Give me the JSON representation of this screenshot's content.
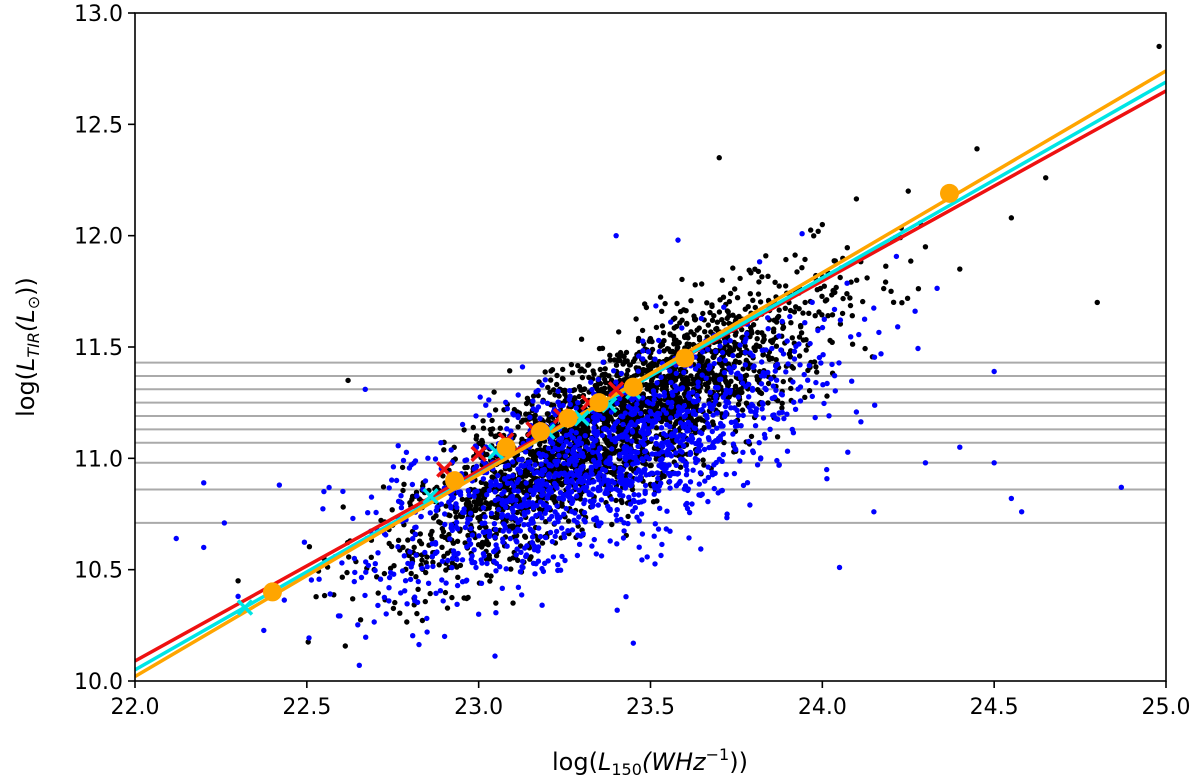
{
  "chart_data": {
    "type": "scatter",
    "title": "",
    "xlabel": {
      "pre": "log(",
      "main": "L",
      "sub": "150",
      "post": "(WHz",
      "sup": "−1",
      "end": "))"
    },
    "ylabel": {
      "pre": "log(",
      "main": "L",
      "sub": "TIR",
      "post": "(L",
      "sub2": "⊙",
      "end": "))"
    },
    "xlim": [
      22.0,
      25.0
    ],
    "ylim": [
      10.0,
      13.0
    ],
    "x_ticks": [
      "22.0",
      "22.5",
      "23.0",
      "23.5",
      "24.0",
      "24.5",
      "25.0"
    ],
    "y_ticks": [
      "10.0",
      "10.5",
      "11.0",
      "11.5",
      "12.0",
      "12.5",
      "13.0"
    ],
    "grid": false,
    "hlines": {
      "color": "#aaaaaa",
      "values": [
        10.71,
        10.86,
        10.98,
        11.07,
        11.13,
        11.19,
        11.25,
        11.31,
        11.37,
        11.43
      ]
    },
    "series": [
      {
        "kind": "scatter",
        "color": "#000000",
        "points": [
          [
            22.62,
            11.35
          ],
          [
            23.7,
            12.35
          ],
          [
            24.45,
            12.39
          ],
          [
            24.98,
            12.85
          ],
          [
            24.65,
            12.26
          ],
          [
            24.4,
            11.85
          ],
          [
            24.55,
            12.08
          ],
          [
            24.3,
            11.95
          ],
          [
            24.8,
            11.7
          ],
          [
            24.25,
            12.2
          ],
          [
            22.3,
            10.45
          ],
          [
            22.55,
            10.55
          ],
          [
            22.75,
            10.7
          ],
          [
            22.9,
            10.95
          ],
          [
            23.05,
            11.1
          ],
          [
            23.2,
            11.2
          ],
          [
            23.35,
            11.3
          ],
          [
            23.5,
            11.4
          ],
          [
            23.65,
            11.45
          ],
          [
            23.8,
            11.6
          ],
          [
            23.95,
            11.7
          ],
          [
            24.1,
            11.8
          ],
          [
            24.2,
            11.75
          ],
          [
            23.05,
            10.35
          ],
          [
            23.1,
            10.35
          ],
          [
            24.0,
            12.05
          ]
        ]
      },
      {
        "kind": "scatter",
        "color": "#0000ff",
        "points": [
          [
            22.12,
            10.64
          ],
          [
            22.2,
            10.89
          ],
          [
            22.2,
            10.6
          ],
          [
            22.26,
            10.71
          ],
          [
            22.3,
            10.38
          ],
          [
            22.42,
            10.88
          ],
          [
            22.67,
            11.31
          ],
          [
            22.8,
            10.58
          ],
          [
            22.85,
            10.22
          ],
          [
            23.0,
            10.3
          ],
          [
            23.45,
            10.17
          ],
          [
            24.05,
            10.51
          ],
          [
            24.15,
            10.76
          ],
          [
            24.5,
            10.98
          ],
          [
            24.55,
            10.82
          ],
          [
            24.5,
            11.39
          ],
          [
            24.87,
            10.87
          ],
          [
            24.58,
            10.76
          ],
          [
            23.4,
            12.0
          ],
          [
            23.58,
            11.98
          ],
          [
            24.4,
            11.05
          ],
          [
            24.3,
            10.98
          ]
        ]
      },
      {
        "kind": "line",
        "name": "",
        "color": "#ee1111",
        "x": [
          22.0,
          25.0
        ],
        "y": [
          10.09,
          12.65
        ]
      },
      {
        "kind": "line",
        "name": "",
        "color": "#00e5e5",
        "x": [
          22.0,
          25.0
        ],
        "y": [
          10.05,
          12.69
        ]
      },
      {
        "kind": "line",
        "name": "",
        "color": "#ffa500",
        "x": [
          22.0,
          25.0
        ],
        "y": [
          10.02,
          12.74
        ]
      },
      {
        "kind": "markers",
        "shape": "x",
        "color": "#ee1111",
        "points": [
          [
            22.9,
            10.95
          ],
          [
            23.0,
            11.02
          ],
          [
            23.08,
            11.08
          ],
          [
            23.16,
            11.13
          ],
          [
            23.24,
            11.19
          ],
          [
            23.32,
            11.25
          ],
          [
            23.4,
            11.31
          ],
          [
            23.6,
            11.45
          ]
        ]
      },
      {
        "kind": "markers",
        "shape": "x",
        "color": "#00e5e5",
        "points": [
          [
            22.32,
            10.33
          ],
          [
            22.86,
            10.83
          ],
          [
            23.05,
            11.03
          ],
          [
            23.2,
            11.12
          ],
          [
            23.3,
            11.18
          ],
          [
            23.38,
            11.24
          ],
          [
            23.45,
            11.3
          ]
        ]
      },
      {
        "kind": "markers",
        "shape": "circle",
        "color": "#ffa500",
        "points": [
          [
            22.4,
            10.4
          ],
          [
            22.93,
            10.9
          ],
          [
            23.08,
            11.05
          ],
          [
            23.18,
            11.12
          ],
          [
            23.26,
            11.18
          ],
          [
            23.35,
            11.25
          ],
          [
            23.45,
            11.32
          ],
          [
            23.6,
            11.45
          ],
          [
            24.37,
            12.19
          ]
        ]
      }
    ]
  }
}
